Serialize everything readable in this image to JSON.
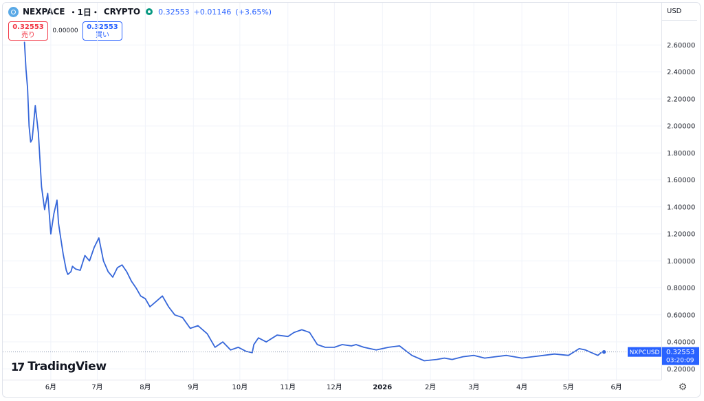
{
  "header": {
    "symbol": "NEXPACE",
    "interval": "・1日・",
    "exchange": "CRYPTO",
    "last": "0.32553",
    "change": "+0.01146",
    "change_pct": "(+3.65%)",
    "logo_icon": "nexpace-logo-icon",
    "market_icon": "market-status-icon"
  },
  "trade": {
    "sell_price": "0.32553",
    "sell_label": "売り",
    "spread": "0.00000",
    "buy_price": "0.32553",
    "buy_label": "買い"
  },
  "currency": "USD",
  "branding": {
    "name": "TradingView"
  },
  "settings_icon": "gear-icon",
  "colors": {
    "line": "#3566d9",
    "accent": "#2962ff",
    "sell": "#f23645",
    "grid": "#f0f3fa"
  },
  "chart_data": {
    "type": "line",
    "series": [
      {
        "name": "NXPCUSD",
        "x": [
          "2025-05-15",
          "2025-05-16",
          "2025-05-17",
          "2025-05-18",
          "2025-05-19",
          "2025-05-20",
          "2025-05-22",
          "2025-05-24",
          "2025-05-26",
          "2025-05-28",
          "2025-05-30",
          "2025-06-01",
          "2025-06-03",
          "2025-06-05",
          "2025-06-06",
          "2025-06-07",
          "2025-06-09",
          "2025-06-11",
          "2025-06-12",
          "2025-06-14",
          "2025-06-15",
          "2025-06-17",
          "2025-06-20",
          "2025-06-23",
          "2025-06-26",
          "2025-06-29",
          "2025-07-02",
          "2025-07-05",
          "2025-07-08",
          "2025-07-11",
          "2025-07-14",
          "2025-07-17",
          "2025-07-20",
          "2025-07-23",
          "2025-07-26",
          "2025-07-29",
          "2025-08-01",
          "2025-08-04",
          "2025-08-08",
          "2025-08-12",
          "2025-08-16",
          "2025-08-20",
          "2025-08-25",
          "2025-08-30",
          "2025-09-04",
          "2025-09-10",
          "2025-09-15",
          "2025-09-20",
          "2025-09-25",
          "2025-09-30",
          "2025-10-05",
          "2025-10-09",
          "2025-10-10",
          "2025-10-13",
          "2025-10-18",
          "2025-10-25",
          "2025-11-01",
          "2025-11-05",
          "2025-11-10",
          "2025-11-15",
          "2025-11-20",
          "2025-11-25",
          "2025-12-01",
          "2025-12-06",
          "2025-12-12",
          "2025-12-15",
          "2025-12-20",
          "2025-12-28",
          "2026-01-05",
          "2026-01-12",
          "2026-01-20",
          "2026-01-28",
          "2026-02-05",
          "2026-02-10",
          "2026-02-15",
          "2026-02-22",
          "2026-03-01",
          "2026-03-08",
          "2026-03-15",
          "2026-03-22",
          "2026-04-01",
          "2026-04-08",
          "2026-04-15",
          "2026-04-22",
          "2026-05-01",
          "2026-05-08",
          "2026-05-12",
          "2026-05-16",
          "2026-05-20",
          "2026-05-22",
          "2026-05-24"
        ],
        "values": [
          2.62,
          2.42,
          2.28,
          2.0,
          1.88,
          1.9,
          2.15,
          1.95,
          1.55,
          1.38,
          1.5,
          1.2,
          1.35,
          1.45,
          1.28,
          1.2,
          1.05,
          0.93,
          0.9,
          0.92,
          0.96,
          0.94,
          0.93,
          1.04,
          1.0,
          1.1,
          1.17,
          1.0,
          0.92,
          0.88,
          0.95,
          0.97,
          0.92,
          0.85,
          0.8,
          0.74,
          0.72,
          0.66,
          0.7,
          0.74,
          0.66,
          0.6,
          0.58,
          0.5,
          0.52,
          0.46,
          0.36,
          0.4,
          0.34,
          0.36,
          0.33,
          0.32,
          0.38,
          0.43,
          0.4,
          0.45,
          0.44,
          0.47,
          0.49,
          0.47,
          0.38,
          0.36,
          0.36,
          0.38,
          0.37,
          0.38,
          0.36,
          0.34,
          0.36,
          0.37,
          0.3,
          0.26,
          0.27,
          0.28,
          0.27,
          0.29,
          0.3,
          0.28,
          0.29,
          0.3,
          0.28,
          0.29,
          0.3,
          0.31,
          0.3,
          0.35,
          0.34,
          0.32,
          0.3,
          0.32,
          0.32553
        ]
      }
    ],
    "x_ticks": [
      "6月",
      "7月",
      "8月",
      "9月",
      "10月",
      "11月",
      "12月",
      "2026",
      "2月",
      "3月",
      "4月",
      "5月",
      "6月"
    ],
    "y_ticks": [
      "0.20000",
      "0.40000",
      "0.60000",
      "0.80000",
      "1.00000",
      "1.20000",
      "1.40000",
      "1.60000",
      "1.80000",
      "2.00000",
      "2.20000",
      "2.40000",
      "2.60000"
    ],
    "ylim": [
      0.12,
      2.78
    ],
    "grid": true,
    "last_value_label": "NXPCUSD",
    "last_value": "0.32553",
    "countdown": "03:20:09"
  }
}
